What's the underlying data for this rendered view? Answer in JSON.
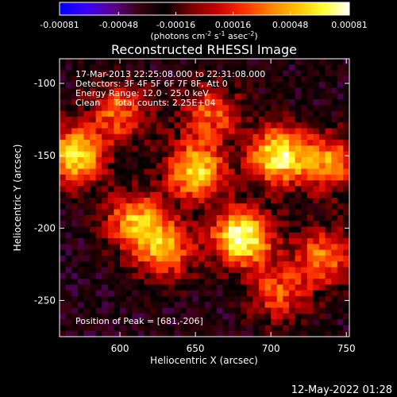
{
  "colorbar": {
    "ticks": [
      "-0.00081",
      "-0.00048",
      "-0.00016",
      "0.00016",
      "0.00048",
      "0.00081"
    ],
    "tick_values": [
      -0.00081,
      -0.00048,
      -0.00016,
      0.00016,
      0.00048,
      0.00081
    ],
    "unit_label_parts": [
      "(photons cm",
      "-2",
      " s",
      "-1",
      " asec",
      "-2",
      ")"
    ],
    "colors": [
      "#0000ff",
      "#3a00ff",
      "#5a0090",
      "#3a0010",
      "#000000",
      "#7a0000",
      "#c80000",
      "#ff3000",
      "#ff8000",
      "#ffc000",
      "#ffff30",
      "#ffffff"
    ]
  },
  "image": {
    "title": "Reconstructed RHESSI Image",
    "info_lines": [
      "17-Mar-2013 22:25:08.000 to 22:31:08.000",
      "Detectors: 3F 4F 5F 6F 7F 8F, Att 0",
      "Energy Range: 12.0 - 25.0 keV",
      "Clean     Total counts: 2.25E+04"
    ],
    "peak_label": "Position of Peak = [681,-206]"
  },
  "footer": {
    "date": "12-May-2022 01:28"
  },
  "chart_data": {
    "type": "heatmap",
    "title": "Reconstructed RHESSI Image",
    "xlabel": "Heliocentric X (arcsec)",
    "ylabel": "Heliocentric Y (arcsec)",
    "xlim": [
      560,
      752
    ],
    "ylim": [
      -275,
      -83
    ],
    "xticks": [
      600,
      650,
      700,
      750
    ],
    "yticks": [
      -100,
      -150,
      -200,
      -250
    ],
    "zlim": [
      -0.00081,
      0.00081
    ],
    "peak": {
      "x": 681,
      "y": -206
    },
    "sources": [
      {
        "x": 681,
        "y": -206,
        "value": 0.00081
      },
      {
        "x": 705,
        "y": -150,
        "value": 0.0007
      },
      {
        "x": 650,
        "y": -160,
        "value": 0.0006
      },
      {
        "x": 570,
        "y": -150,
        "value": 0.00065
      },
      {
        "x": 610,
        "y": -195,
        "value": 0.00045
      },
      {
        "x": 740,
        "y": -155,
        "value": 0.0004
      },
      {
        "x": 600,
        "y": -120,
        "value": 0.0003
      },
      {
        "x": 735,
        "y": -220,
        "value": 0.00035
      },
      {
        "x": 705,
        "y": -245,
        "value": 0.00025
      },
      {
        "x": 660,
        "y": -120,
        "value": 0.00028
      },
      {
        "x": 630,
        "y": -215,
        "value": 0.0004
      }
    ],
    "grid": false
  }
}
